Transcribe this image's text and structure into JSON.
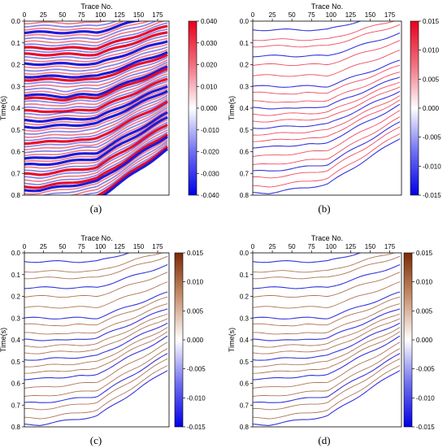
{
  "chart_data": [
    {
      "type": "heatmap",
      "panel": "(a)",
      "x_axis": {
        "label": "Trace No.",
        "ticks": [
          0,
          25,
          50,
          75,
          100,
          125,
          150,
          175
        ],
        "range": [
          0,
          190
        ],
        "position": "top"
      },
      "y_axis": {
        "label": "Time(s)",
        "ticks": [
          0.0,
          0.1,
          0.2,
          0.3,
          0.4,
          0.5,
          0.6,
          0.7,
          0.8
        ],
        "range": [
          0.0,
          0.8
        ],
        "inverted": true
      },
      "colorbar": {
        "ticks": [
          "0.040",
          "0.030",
          "0.020",
          "0.010",
          "0.000",
          "-0.010",
          "-0.020",
          "-0.030",
          "-0.040"
        ],
        "range": [
          -0.04,
          0.04
        ],
        "colormap": "blue-white-red"
      },
      "style": "dense seismic section"
    },
    {
      "type": "line",
      "panel": "(b)",
      "x_axis": {
        "label": "Trace No.",
        "ticks": [
          0,
          25,
          50,
          75,
          100,
          125,
          150,
          175
        ],
        "range": [
          0,
          190
        ],
        "position": "top"
      },
      "y_axis": {
        "label": "Time(s)",
        "ticks": [
          0.0,
          0.1,
          0.2,
          0.3,
          0.4,
          0.5,
          0.6,
          0.7,
          0.8
        ],
        "range": [
          0.0,
          0.8
        ],
        "inverted": true
      },
      "colorbar": {
        "ticks": [
          "0.015",
          "0.010",
          "0.005",
          "0.000",
          "-0.005",
          "-0.010",
          "-0.015"
        ],
        "range": [
          -0.015,
          0.015
        ],
        "colormap": "blue-white-red"
      },
      "style": "sparse reflector lines"
    },
    {
      "type": "line",
      "panel": "(c)",
      "x_axis": {
        "label": "Trace No.",
        "ticks": [
          0,
          25,
          50,
          75,
          100,
          125,
          150,
          175
        ],
        "range": [
          0,
          190
        ],
        "position": "top"
      },
      "y_axis": {
        "label": "Time(s)",
        "ticks": [
          0.0,
          0.1,
          0.2,
          0.3,
          0.4,
          0.5,
          0.6,
          0.7,
          0.8
        ],
        "range": [
          0.0,
          0.8
        ],
        "inverted": true
      },
      "colorbar": {
        "ticks": [
          "0.015",
          "0.010",
          "0.005",
          "0.000",
          "-0.005",
          "-0.010",
          "-0.015"
        ],
        "range": [
          -0.015,
          0.015
        ],
        "colormap": "blue-white-brown"
      },
      "style": "sparse reflector lines"
    },
    {
      "type": "line",
      "panel": "(d)",
      "x_axis": {
        "label": "Trace No.",
        "ticks": [
          0,
          25,
          50,
          75,
          100,
          125,
          150,
          175
        ],
        "range": [
          0,
          190
        ],
        "position": "top"
      },
      "y_axis": {
        "label": "Time(s)",
        "ticks": [
          0.0,
          0.1,
          0.2,
          0.3,
          0.4,
          0.5,
          0.6,
          0.7,
          0.8
        ],
        "range": [
          0.0,
          0.8
        ],
        "inverted": true
      },
      "colorbar": {
        "ticks": [
          "0.015",
          "0.010",
          "0.005",
          "0.000",
          "-0.005",
          "-0.010",
          "-0.015"
        ],
        "range": [
          -0.015,
          0.015
        ],
        "colormap": "blue-white-brown"
      },
      "style": "sparse reflector lines"
    }
  ],
  "colors": {
    "positive_red": "#e8001c",
    "negative_blue": "#1010d8",
    "positive_brown": "#8b3a0f"
  }
}
